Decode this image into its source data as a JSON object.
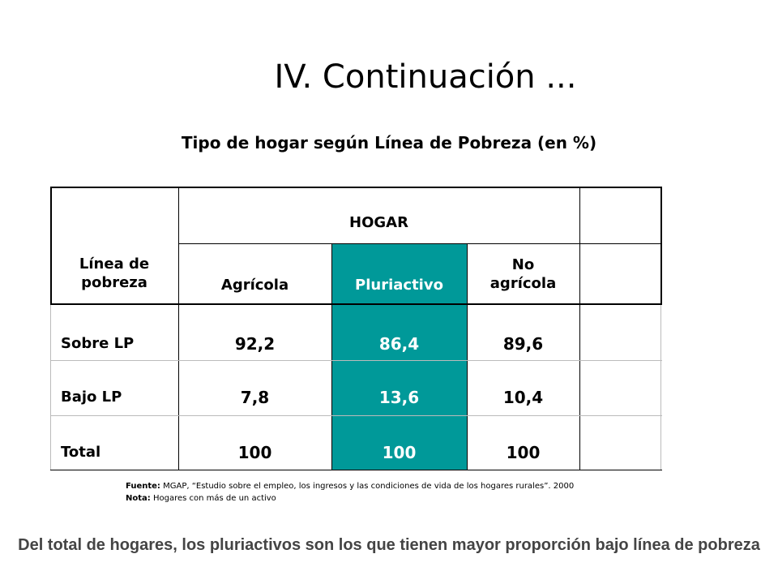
{
  "slide": {
    "title": "IV. Continuación ...",
    "subtitle": "Tipo de hogar según Línea de Pobreza (en %)"
  },
  "table": {
    "group_header": "HOGAR",
    "row_header_label": "Línea de pobreza",
    "columns": [
      "Agrícola",
      "Pluriactivo",
      "No agrícola"
    ],
    "rows": [
      {
        "label": "Sobre LP",
        "values": [
          "92,2",
          "86,4",
          "89,6"
        ]
      },
      {
        "label": "Bajo LP",
        "values": [
          "7,8",
          "13,6",
          "10,4"
        ]
      },
      {
        "label": "Total",
        "values": [
          "100",
          "100",
          "100"
        ]
      }
    ],
    "highlight_color": "#009999"
  },
  "notes": {
    "source_label": "Fuente:",
    "source_text": "MGAP, “Estudio sobre el empleo, los ingresos y las condiciones de vida de los hogares rurales”. 2000",
    "note_label": "Nota:",
    "note_text": "Hogares con más de un activo"
  },
  "footer": {
    "text": "Del total de hogares, los pluriactivos son los que tienen mayor proporción bajo línea de pobreza"
  }
}
